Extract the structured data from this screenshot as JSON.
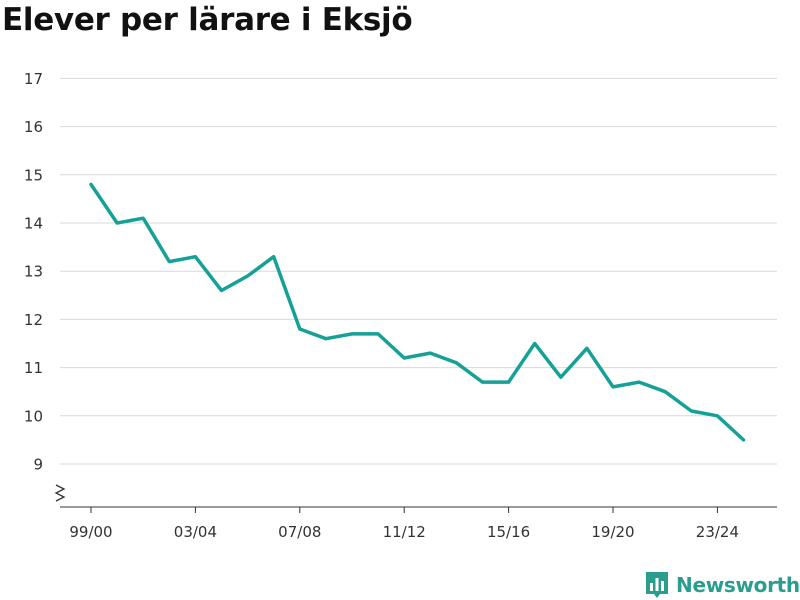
{
  "title": "Elever per lärare i Eksjö",
  "brand": {
    "name": "Newsworthy",
    "icon": "newsworthy-logo-icon",
    "color": "#2a9d8f"
  },
  "colors": {
    "line": "#16a196",
    "grid": "#d9d9d9",
    "axis": "#333333"
  },
  "chart_data": {
    "type": "line",
    "title": "Elever per lärare i Eksjö",
    "xlabel": "",
    "ylabel": "",
    "x": [
      "99/00",
      "00/01",
      "01/02",
      "02/03",
      "03/04",
      "04/05",
      "05/06",
      "06/07",
      "07/08",
      "08/09",
      "09/10",
      "10/11",
      "11/12",
      "12/13",
      "13/14",
      "14/15",
      "15/16",
      "16/17",
      "17/18",
      "18/19",
      "19/20",
      "20/21",
      "21/22",
      "22/23",
      "23/24",
      "24/25"
    ],
    "series": [
      {
        "name": "",
        "values": [
          14.8,
          14.0,
          14.1,
          13.2,
          13.3,
          12.6,
          12.9,
          13.3,
          11.8,
          11.6,
          11.7,
          11.7,
          11.2,
          11.3,
          11.1,
          10.7,
          10.7,
          11.5,
          10.8,
          11.4,
          10.6,
          10.7,
          10.5,
          10.1,
          10.0,
          9.5
        ]
      }
    ],
    "x_tick_labels": [
      "99/00",
      "03/04",
      "07/08",
      "11/12",
      "15/16",
      "19/20",
      "23/24"
    ],
    "y_ticks": [
      9,
      10,
      11,
      12,
      13,
      14,
      15,
      16,
      17
    ],
    "ylim": [
      9,
      17
    ],
    "y_axis_break": true,
    "grid": true,
    "legend": "none"
  }
}
